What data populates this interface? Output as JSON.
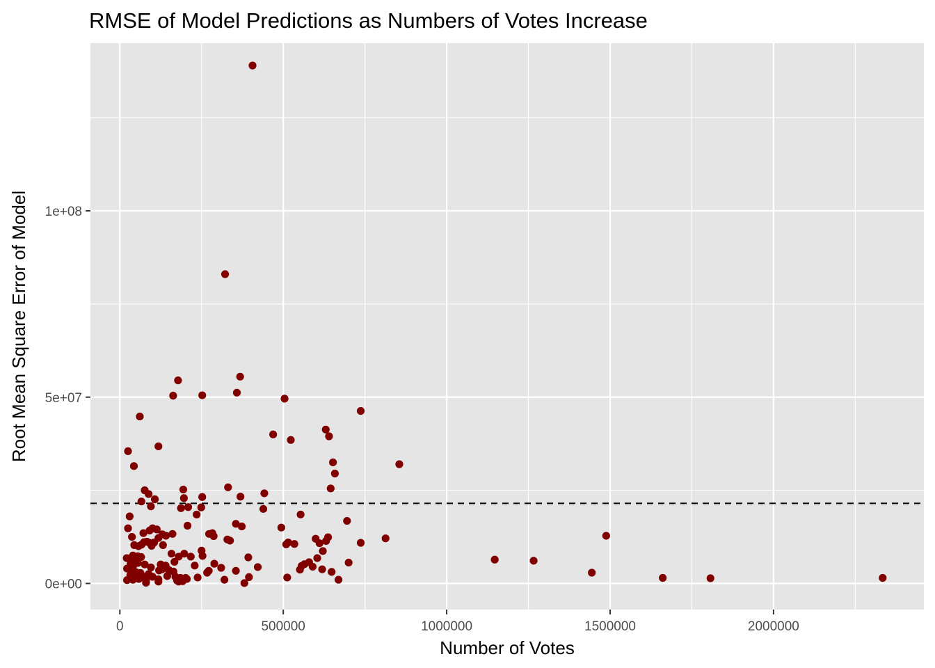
{
  "chart_data": {
    "type": "scatter",
    "title": "RMSE of Model Predictions as Numbers of Votes Increase",
    "xlabel": "Number of Votes",
    "ylabel": "Root Mean Square Error of Model",
    "xlim": [
      -90000,
      2460000
    ],
    "ylim": [
      -7000000,
      145000000
    ],
    "x_ticks": [
      0,
      500000,
      1000000,
      1500000,
      2000000
    ],
    "x_tick_labels": [
      "0",
      "500000",
      "1000000",
      "1500000",
      "2000000"
    ],
    "x_minor_ticks": [
      250000,
      750000,
      1250000,
      1750000,
      2250000
    ],
    "y_ticks": [
      0,
      50000000,
      100000000
    ],
    "y_tick_labels": [
      "0e+00",
      "5e+07",
      "1e+08"
    ],
    "y_minor_ticks": [
      25000000,
      75000000,
      125000000
    ],
    "grid": true,
    "reference_line": {
      "y": 21500000,
      "style": "dashed",
      "color": "#000000"
    },
    "point_color": "#800000",
    "panel_color": "#e5e5e5",
    "grid_color": "#ffffff",
    "legend": "none",
    "points": [
      [
        406000,
        139000000
      ],
      [
        322000,
        83000000
      ],
      [
        368000,
        55500000
      ],
      [
        178000,
        54500000
      ],
      [
        252000,
        50500000
      ],
      [
        163000,
        50400000
      ],
      [
        358000,
        51200000
      ],
      [
        504000,
        49600000
      ],
      [
        61000,
        44800000
      ],
      [
        737000,
        46300000
      ],
      [
        630000,
        41300000
      ],
      [
        640000,
        39500000
      ],
      [
        469000,
        40000000
      ],
      [
        523000,
        38500000
      ],
      [
        118000,
        36800000
      ],
      [
        25000,
        35500000
      ],
      [
        43000,
        31500000
      ],
      [
        652000,
        32500000
      ],
      [
        855000,
        32000000
      ],
      [
        658000,
        29500000
      ],
      [
        331000,
        25800000
      ],
      [
        645000,
        25500000
      ],
      [
        76000,
        25000000
      ],
      [
        194000,
        25200000
      ],
      [
        442000,
        24200000
      ],
      [
        88000,
        24000000
      ],
      [
        252000,
        23200000
      ],
      [
        369000,
        23300000
      ],
      [
        196000,
        22900000
      ],
      [
        107000,
        22600000
      ],
      [
        66000,
        22000000
      ],
      [
        95000,
        20700000
      ],
      [
        187000,
        20200000
      ],
      [
        209000,
        20500000
      ],
      [
        249000,
        20400000
      ],
      [
        439000,
        20000000
      ],
      [
        30000,
        18000000
      ],
      [
        235000,
        18500000
      ],
      [
        553000,
        18500000
      ],
      [
        695000,
        16800000
      ],
      [
        355000,
        16000000
      ],
      [
        373000,
        15300000
      ],
      [
        207000,
        15500000
      ],
      [
        494000,
        15000000
      ],
      [
        25000,
        14800000
      ],
      [
        100000,
        14800000
      ],
      [
        113000,
        14500000
      ],
      [
        91000,
        14200000
      ],
      [
        72000,
        13500000
      ],
      [
        130000,
        13200000
      ],
      [
        161000,
        13300000
      ],
      [
        283000,
        13500000
      ],
      [
        273000,
        13300000
      ],
      [
        287000,
        12700000
      ],
      [
        141000,
        12800000
      ],
      [
        37000,
        12500000
      ],
      [
        1488000,
        12800000
      ],
      [
        637000,
        12400000
      ],
      [
        118000,
        12200000
      ],
      [
        599000,
        12000000
      ],
      [
        813000,
        12100000
      ],
      [
        329000,
        11800000
      ],
      [
        337000,
        11500000
      ],
      [
        631000,
        11400000
      ],
      [
        515000,
        11000000
      ],
      [
        509000,
        10500000
      ],
      [
        534000,
        10600000
      ],
      [
        611000,
        10800000
      ],
      [
        737000,
        10900000
      ],
      [
        105000,
        11000000
      ],
      [
        74000,
        11100000
      ],
      [
        83000,
        11200000
      ],
      [
        91000,
        10900000
      ],
      [
        132000,
        10300000
      ],
      [
        66000,
        10400000
      ],
      [
        44000,
        10300000
      ],
      [
        57000,
        10000000
      ],
      [
        97000,
        10100000
      ],
      [
        621000,
        8700000
      ],
      [
        197000,
        8000000
      ],
      [
        158000,
        8000000
      ],
      [
        250000,
        8800000
      ],
      [
        217000,
        7200000
      ],
      [
        253000,
        7400000
      ],
      [
        180000,
        7200000
      ],
      [
        40000,
        7500000
      ],
      [
        55000,
        7300000
      ],
      [
        65000,
        7100000
      ],
      [
        21000,
        6800000
      ],
      [
        30000,
        6600000
      ],
      [
        48000,
        6500000
      ],
      [
        604000,
        6800000
      ],
      [
        393000,
        7000000
      ],
      [
        167000,
        5800000
      ],
      [
        289000,
        5300000
      ],
      [
        579000,
        5700000
      ],
      [
        565000,
        5200000
      ],
      [
        700000,
        5600000
      ],
      [
        1147000,
        6400000
      ],
      [
        1266000,
        6100000
      ],
      [
        55000,
        5500000
      ],
      [
        33000,
        5300000
      ],
      [
        76000,
        5100000
      ],
      [
        125000,
        5100000
      ],
      [
        140000,
        4800000
      ],
      [
        229000,
        4800000
      ],
      [
        310000,
        4200000
      ],
      [
        422000,
        4400000
      ],
      [
        556000,
        4700000
      ],
      [
        590000,
        4500000
      ],
      [
        619000,
        3800000
      ],
      [
        95000,
        4300000
      ],
      [
        40000,
        4500000
      ],
      [
        22000,
        4000000
      ],
      [
        129000,
        3800000
      ],
      [
        120000,
        3500000
      ],
      [
        150000,
        3600000
      ],
      [
        164000,
        3200000
      ],
      [
        272000,
        3400000
      ],
      [
        267000,
        2900000
      ],
      [
        355000,
        3400000
      ],
      [
        551000,
        3700000
      ],
      [
        648000,
        3100000
      ],
      [
        1444000,
        2900000
      ],
      [
        36000,
        3500000
      ],
      [
        50000,
        3000000
      ],
      [
        63000,
        2800000
      ],
      [
        88000,
        2500000
      ],
      [
        68000,
        2000000
      ],
      [
        32000,
        2200000
      ],
      [
        44000,
        1800000
      ],
      [
        54000,
        1800000
      ],
      [
        100000,
        1800000
      ],
      [
        145000,
        2000000
      ],
      [
        170000,
        1800000
      ],
      [
        185000,
        1500000
      ],
      [
        201000,
        1500000
      ],
      [
        238000,
        1600000
      ],
      [
        395000,
        1700000
      ],
      [
        512000,
        1600000
      ],
      [
        320000,
        1000000
      ],
      [
        669000,
        1000000
      ],
      [
        1661000,
        1500000
      ],
      [
        1807000,
        1400000
      ],
      [
        2334000,
        1500000
      ],
      [
        22000,
        900000
      ],
      [
        40000,
        1000000
      ],
      [
        58000,
        1200000
      ],
      [
        80000,
        800000
      ],
      [
        118000,
        1100000
      ],
      [
        118000,
        500000
      ],
      [
        175000,
        800000
      ],
      [
        180000,
        500000
      ],
      [
        192000,
        600000
      ],
      [
        205000,
        1200000
      ],
      [
        80000,
        200000
      ],
      [
        381000,
        100000
      ]
    ]
  }
}
